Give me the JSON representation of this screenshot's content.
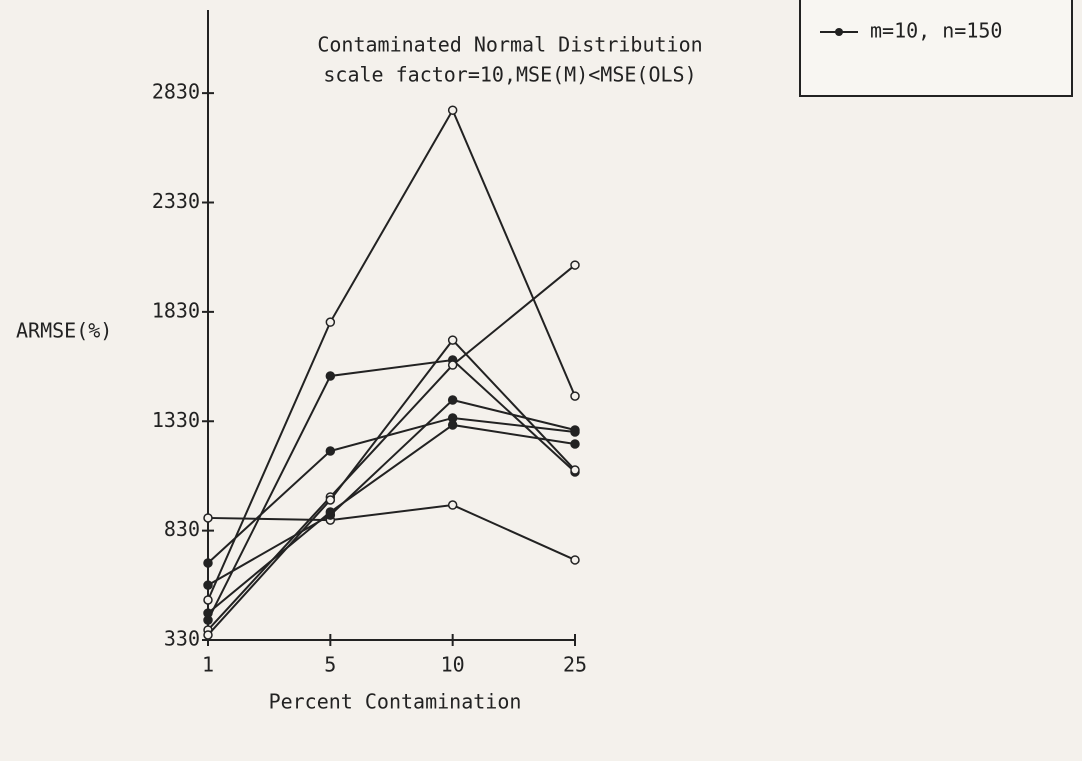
{
  "chart_data": {
    "type": "line",
    "title": "Contaminated Normal Distribution",
    "subtitle": "scale factor=10,MSE(M)<MSE(OLS)",
    "x_label": "Percent Contamination",
    "y_label": "ARMSE(%)",
    "categories": [
      "1",
      "5",
      "10",
      "25"
    ],
    "series": [
      {
        "color": "#222222",
        "values": [
          513,
          1783,
          2752,
          1445
        ]
      },
      {
        "color": "#222222",
        "values": [
          421,
          1537,
          1610,
          1098
        ]
      },
      {
        "color": "#222222",
        "values": [
          376,
          984,
          1587,
          2044
        ]
      },
      {
        "color": "#222222",
        "values": [
          682,
          1194,
          1345,
          1281
        ]
      },
      {
        "color": "#222222",
        "values": [
          888,
          878,
          947,
          696
        ]
      },
      {
        "name": "m=10, n=150",
        "color": "#222222",
        "values": [
          453,
          915,
          1313,
          1226
        ]
      },
      {
        "color": "#222222",
        "values": [
          353,
          970,
          1701,
          1107
        ]
      },
      {
        "color": "#222222",
        "values": [
          581,
          901,
          1427,
          1290
        ]
      }
    ],
    "ylim": [
      330,
      3210
    ],
    "yticks": [
      330,
      830,
      1330,
      1830,
      2330,
      2830
    ],
    "legend": "upper right"
  }
}
